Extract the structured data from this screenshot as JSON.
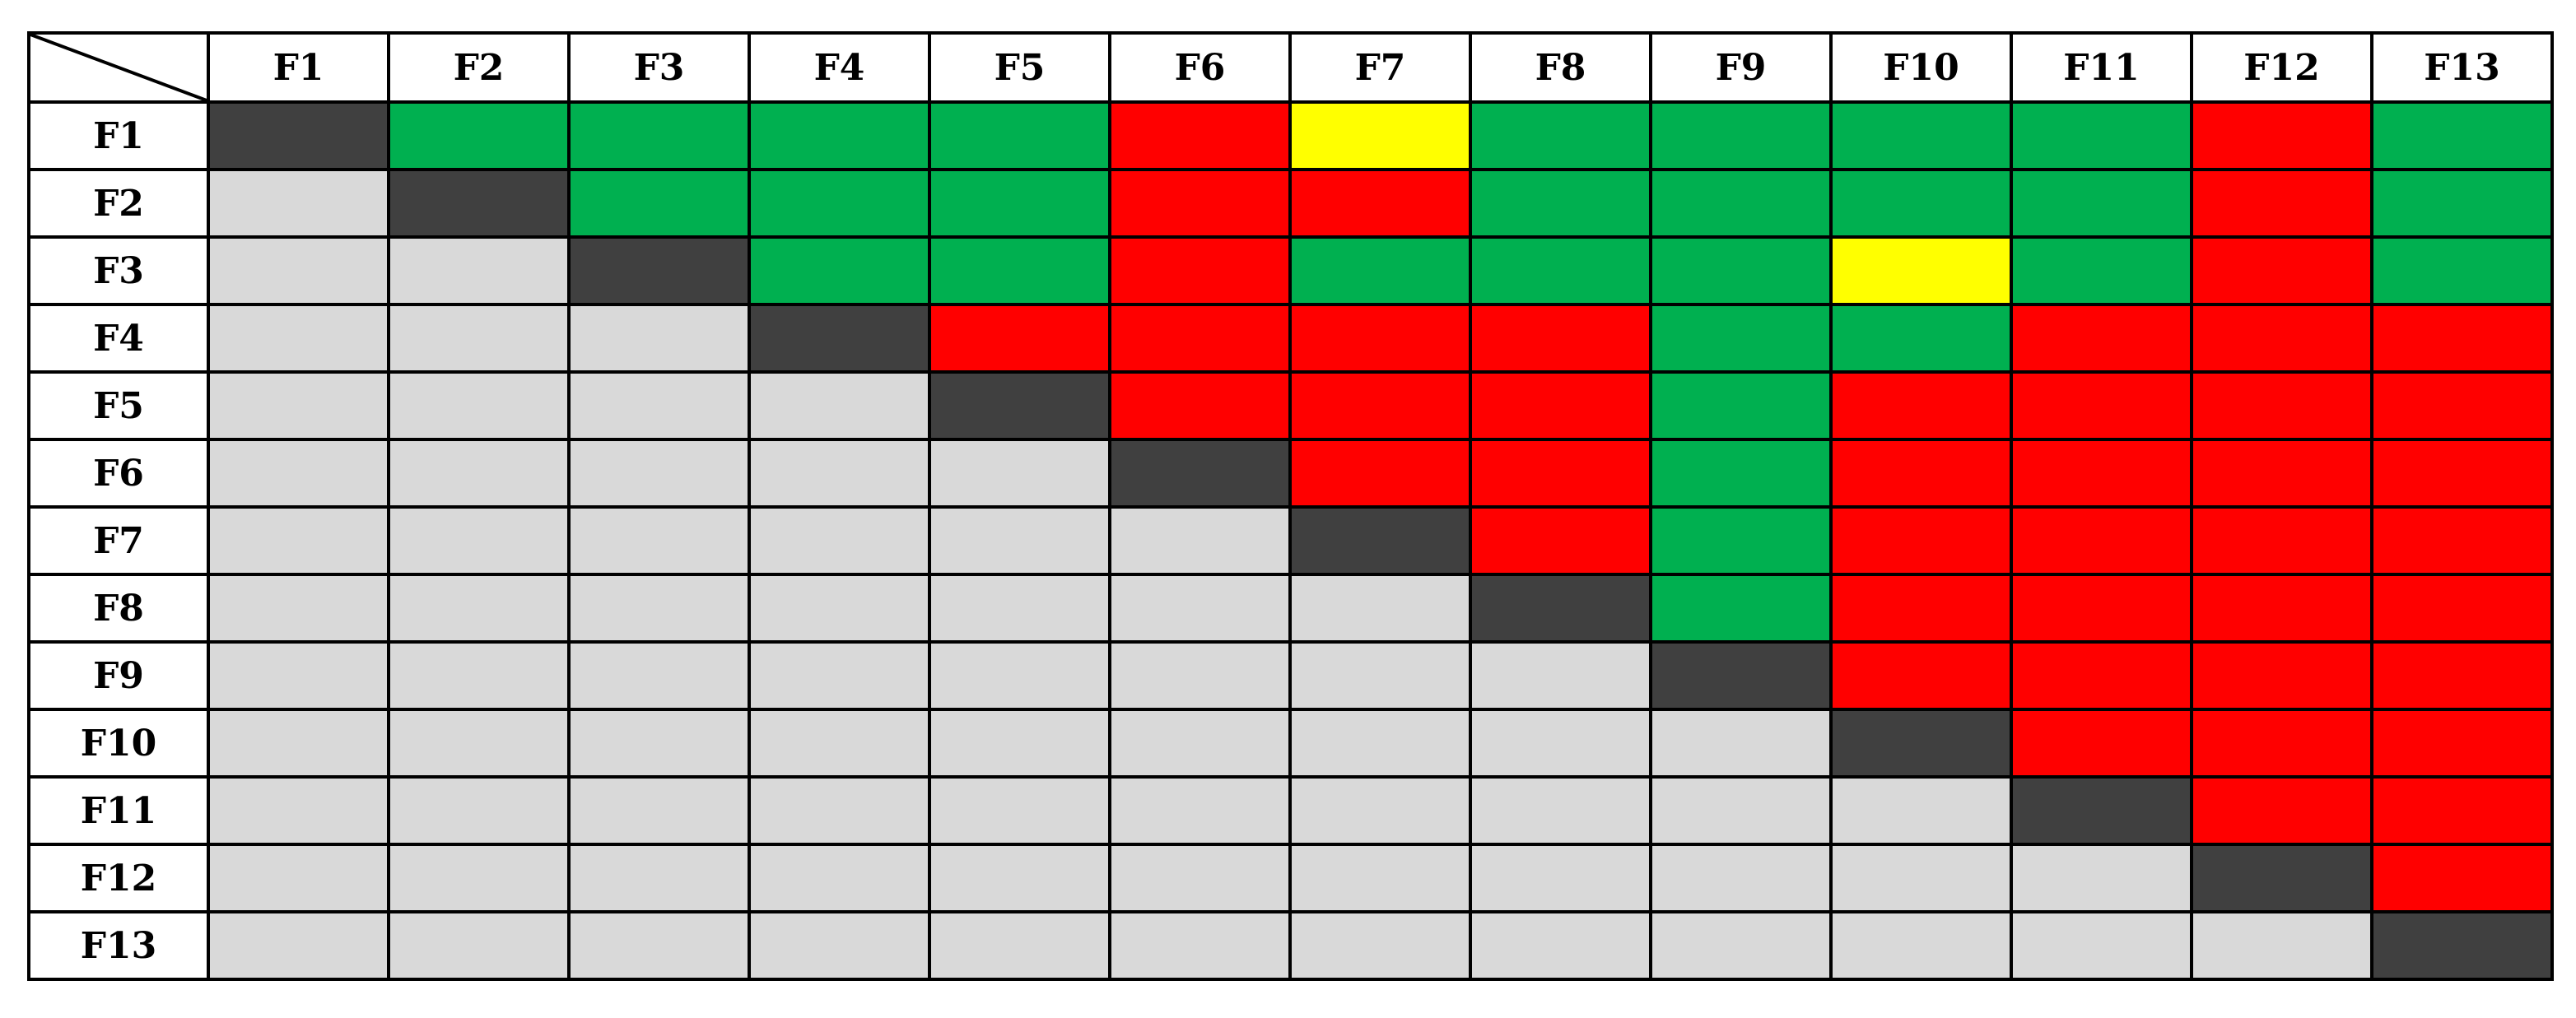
{
  "chart_data": {
    "type": "heatmap",
    "title": "",
    "xlabel": "",
    "ylabel": "",
    "columns": [
      "F1",
      "F2",
      "F3",
      "F4",
      "F5",
      "F6",
      "F7",
      "F8",
      "F9",
      "F10",
      "F11",
      "F12",
      "F13"
    ],
    "rows": [
      "F1",
      "F2",
      "F3",
      "F4",
      "F5",
      "F6",
      "F7",
      "F8",
      "F9",
      "F10",
      "F11",
      "F12",
      "F13"
    ],
    "legend": {
      "G": "green",
      "R": "red",
      "Y": "yellow",
      "D": "diagonal",
      "L": "lower-empty"
    },
    "colors": {
      "G": "#00B050",
      "R": "#FF0000",
      "Y": "#FFFF00",
      "D": "#404040",
      "L": "#D9D9D9"
    },
    "matrix": [
      [
        "D",
        "G",
        "G",
        "G",
        "G",
        "R",
        "Y",
        "G",
        "G",
        "G",
        "G",
        "R",
        "G"
      ],
      [
        "L",
        "D",
        "G",
        "G",
        "G",
        "R",
        "R",
        "G",
        "G",
        "G",
        "G",
        "R",
        "G"
      ],
      [
        "L",
        "L",
        "D",
        "G",
        "G",
        "R",
        "G",
        "G",
        "G",
        "Y",
        "G",
        "R",
        "G"
      ],
      [
        "L",
        "L",
        "L",
        "D",
        "R",
        "R",
        "R",
        "R",
        "G",
        "G",
        "R",
        "R",
        "R"
      ],
      [
        "L",
        "L",
        "L",
        "L",
        "D",
        "R",
        "R",
        "R",
        "G",
        "R",
        "R",
        "R",
        "R"
      ],
      [
        "L",
        "L",
        "L",
        "L",
        "L",
        "D",
        "R",
        "R",
        "G",
        "R",
        "R",
        "R",
        "R"
      ],
      [
        "L",
        "L",
        "L",
        "L",
        "L",
        "L",
        "D",
        "R",
        "G",
        "R",
        "R",
        "R",
        "R"
      ],
      [
        "L",
        "L",
        "L",
        "L",
        "L",
        "L",
        "L",
        "D",
        "G",
        "R",
        "R",
        "R",
        "R"
      ],
      [
        "L",
        "L",
        "L",
        "L",
        "L",
        "L",
        "L",
        "L",
        "D",
        "R",
        "R",
        "R",
        "R"
      ],
      [
        "L",
        "L",
        "L",
        "L",
        "L",
        "L",
        "L",
        "L",
        "L",
        "D",
        "R",
        "R",
        "R"
      ],
      [
        "L",
        "L",
        "L",
        "L",
        "L",
        "L",
        "L",
        "L",
        "L",
        "L",
        "D",
        "R",
        "R"
      ],
      [
        "L",
        "L",
        "L",
        "L",
        "L",
        "L",
        "L",
        "L",
        "L",
        "L",
        "L",
        "D",
        "R"
      ],
      [
        "L",
        "L",
        "L",
        "L",
        "L",
        "L",
        "L",
        "L",
        "L",
        "L",
        "L",
        "L",
        "D"
      ]
    ]
  }
}
